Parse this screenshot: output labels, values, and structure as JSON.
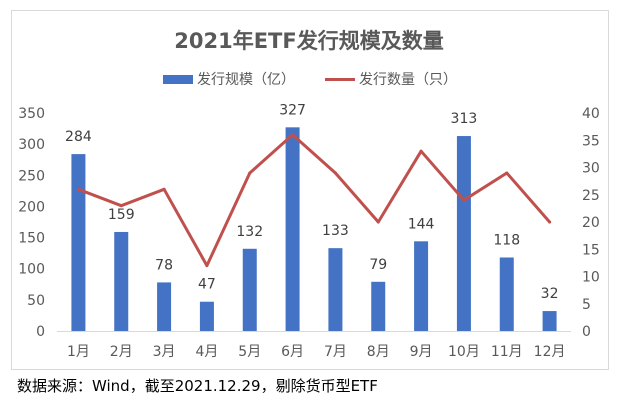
{
  "chart_data": {
    "type": "bar",
    "title": "2021年ETF发行规模及数量",
    "categories": [
      "1月",
      "2月",
      "3月",
      "4月",
      "5月",
      "6月",
      "7月",
      "8月",
      "9月",
      "10月",
      "11月",
      "12月"
    ],
    "series": [
      {
        "name": "发行规模（亿）",
        "type": "bar",
        "axis": "left",
        "color": "#4472c4",
        "values": [
          284,
          159,
          78,
          47,
          132,
          327,
          133,
          79,
          144,
          313,
          118,
          32
        ]
      },
      {
        "name": "发行数量（只）",
        "type": "line",
        "axis": "right",
        "color": "#c0504d",
        "values": [
          26,
          23,
          26,
          12,
          29,
          36,
          29,
          20,
          33,
          24,
          29,
          20
        ]
      }
    ],
    "y_left": {
      "min": 0,
      "max": 350,
      "ticks": [
        0,
        50,
        100,
        150,
        200,
        250,
        300,
        350
      ]
    },
    "y_right": {
      "min": 0,
      "max": 40,
      "ticks": [
        0,
        5,
        10,
        15,
        20,
        25,
        30,
        35,
        40
      ]
    },
    "grid": false,
    "legend": "top-center",
    "data_labels": "bars"
  },
  "source_note": "数据来源：Wind，截至2021.12.29，剔除货币型ETF"
}
